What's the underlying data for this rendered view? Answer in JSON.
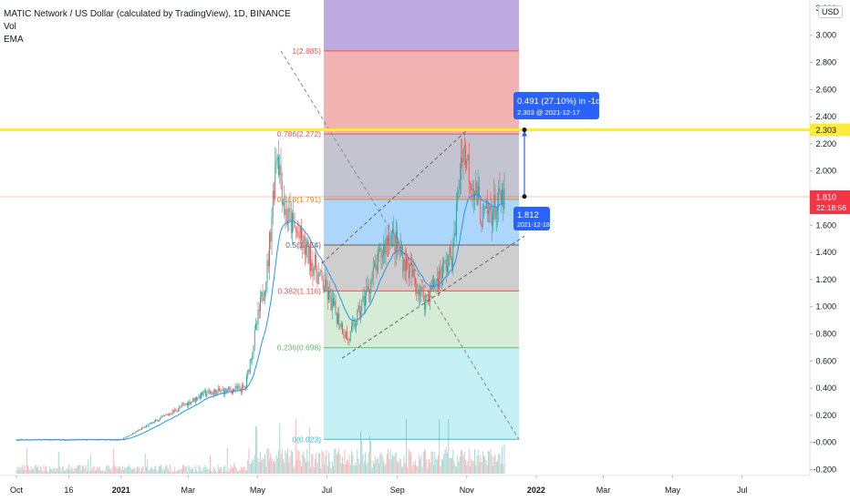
{
  "header": {
    "title": "MATIC Network / US Dollar (calculated by TradingView), 1D, BINANCE",
    "indicator_vol": "Vol",
    "indicator_ema": "EMA",
    "currency_button": "USD"
  },
  "colors": {
    "up_candle": "#26a69a",
    "down_candle": "#ef5350",
    "ema_line": "#2196f3",
    "horizontal_line": "#ffeb3b",
    "price_label": "#f23645",
    "measure_blue": "#2962ff"
  },
  "chart_data": {
    "type": "candlestick",
    "title": "MATIC Network / US Dollar (calculated by TradingView), 1D, BINANCE",
    "y_axis": {
      "range": [
        -0.25,
        3.25
      ],
      "ticks": [
        "-0.200",
        "-0.000",
        "0.200",
        "0.400",
        "0.600",
        "0.800",
        "1.000",
        "1.200",
        "1.400",
        "1.600",
        "2.000",
        "2.200",
        "2.400",
        "2.600",
        "2.800",
        "3.000"
      ],
      "top_partial_tick": "3.200"
    },
    "x_axis": {
      "tick_labels": [
        "Oct",
        "16",
        "2021",
        "Mar",
        "May",
        "Jul",
        "Sep",
        "Nov",
        "2022",
        "Mar",
        "May",
        "Jul"
      ],
      "bold_labels": [
        "2021",
        "2022"
      ]
    },
    "price_series_approx": [
      {
        "date": "2020-10-01",
        "close": 0.02
      },
      {
        "date": "2021-01-01",
        "close": 0.02
      },
      {
        "date": "2021-02-10",
        "close": 0.2
      },
      {
        "date": "2021-03-15",
        "close": 0.36
      },
      {
        "date": "2021-04-20",
        "close": 0.4
      },
      {
        "date": "2021-05-10",
        "close": 1.3
      },
      {
        "date": "2021-05-18",
        "close": 2.2
      },
      {
        "date": "2021-05-25",
        "close": 1.7
      },
      {
        "date": "2021-06-20",
        "close": 1.3
      },
      {
        "date": "2021-07-20",
        "close": 0.75
      },
      {
        "date": "2021-08-25",
        "close": 1.55
      },
      {
        "date": "2021-09-25",
        "close": 1.05
      },
      {
        "date": "2021-10-20",
        "close": 1.4
      },
      {
        "date": "2021-10-28",
        "close": 2.2
      },
      {
        "date": "2021-11-15",
        "close": 1.65
      },
      {
        "date": "2021-12-05",
        "close": 1.8
      }
    ],
    "current_price": {
      "value": "1.810",
      "countdown": "22:18:56"
    },
    "horizontal_line": {
      "value": 2.303,
      "label": "2.303"
    },
    "fibonacci_levels": [
      {
        "ratio_label": "1(2.885)",
        "value": 2.885,
        "fill": "#b39ddb",
        "line": "#ef5350"
      },
      {
        "ratio_label": "0.786(2.272)",
        "value": 2.272,
        "fill": "#ef9a9a",
        "line": "#ef5350"
      },
      {
        "ratio_label": "0.618(1.791)",
        "value": 1.791,
        "fill": "#b0b0c0",
        "line": "#f57f17"
      },
      {
        "ratio_label": "0.5(1.454)",
        "value": 1.454,
        "fill": "#90caf9",
        "line": "#616161"
      },
      {
        "ratio_label": "0.382(1.116)",
        "value": 1.116,
        "fill": "#bdbdbd",
        "line": "#ef5350"
      },
      {
        "ratio_label": "0.236(0.698)",
        "value": 0.698,
        "fill": "#c8e6c9",
        "line": "#66bb6a"
      },
      {
        "ratio_label": "0(0.023)",
        "value": 0.023,
        "fill": "#b2ebf2",
        "line": "#26c6da"
      }
    ],
    "fib_extension_top_value": 3.25,
    "measurement": {
      "change_label": "0.491 (27.10%) in -1d",
      "target_label": "2.303 @ 2021-12-17",
      "start_value": "1.812",
      "start_date": "2021-12-18"
    },
    "legend": "top-left",
    "grid": false
  }
}
